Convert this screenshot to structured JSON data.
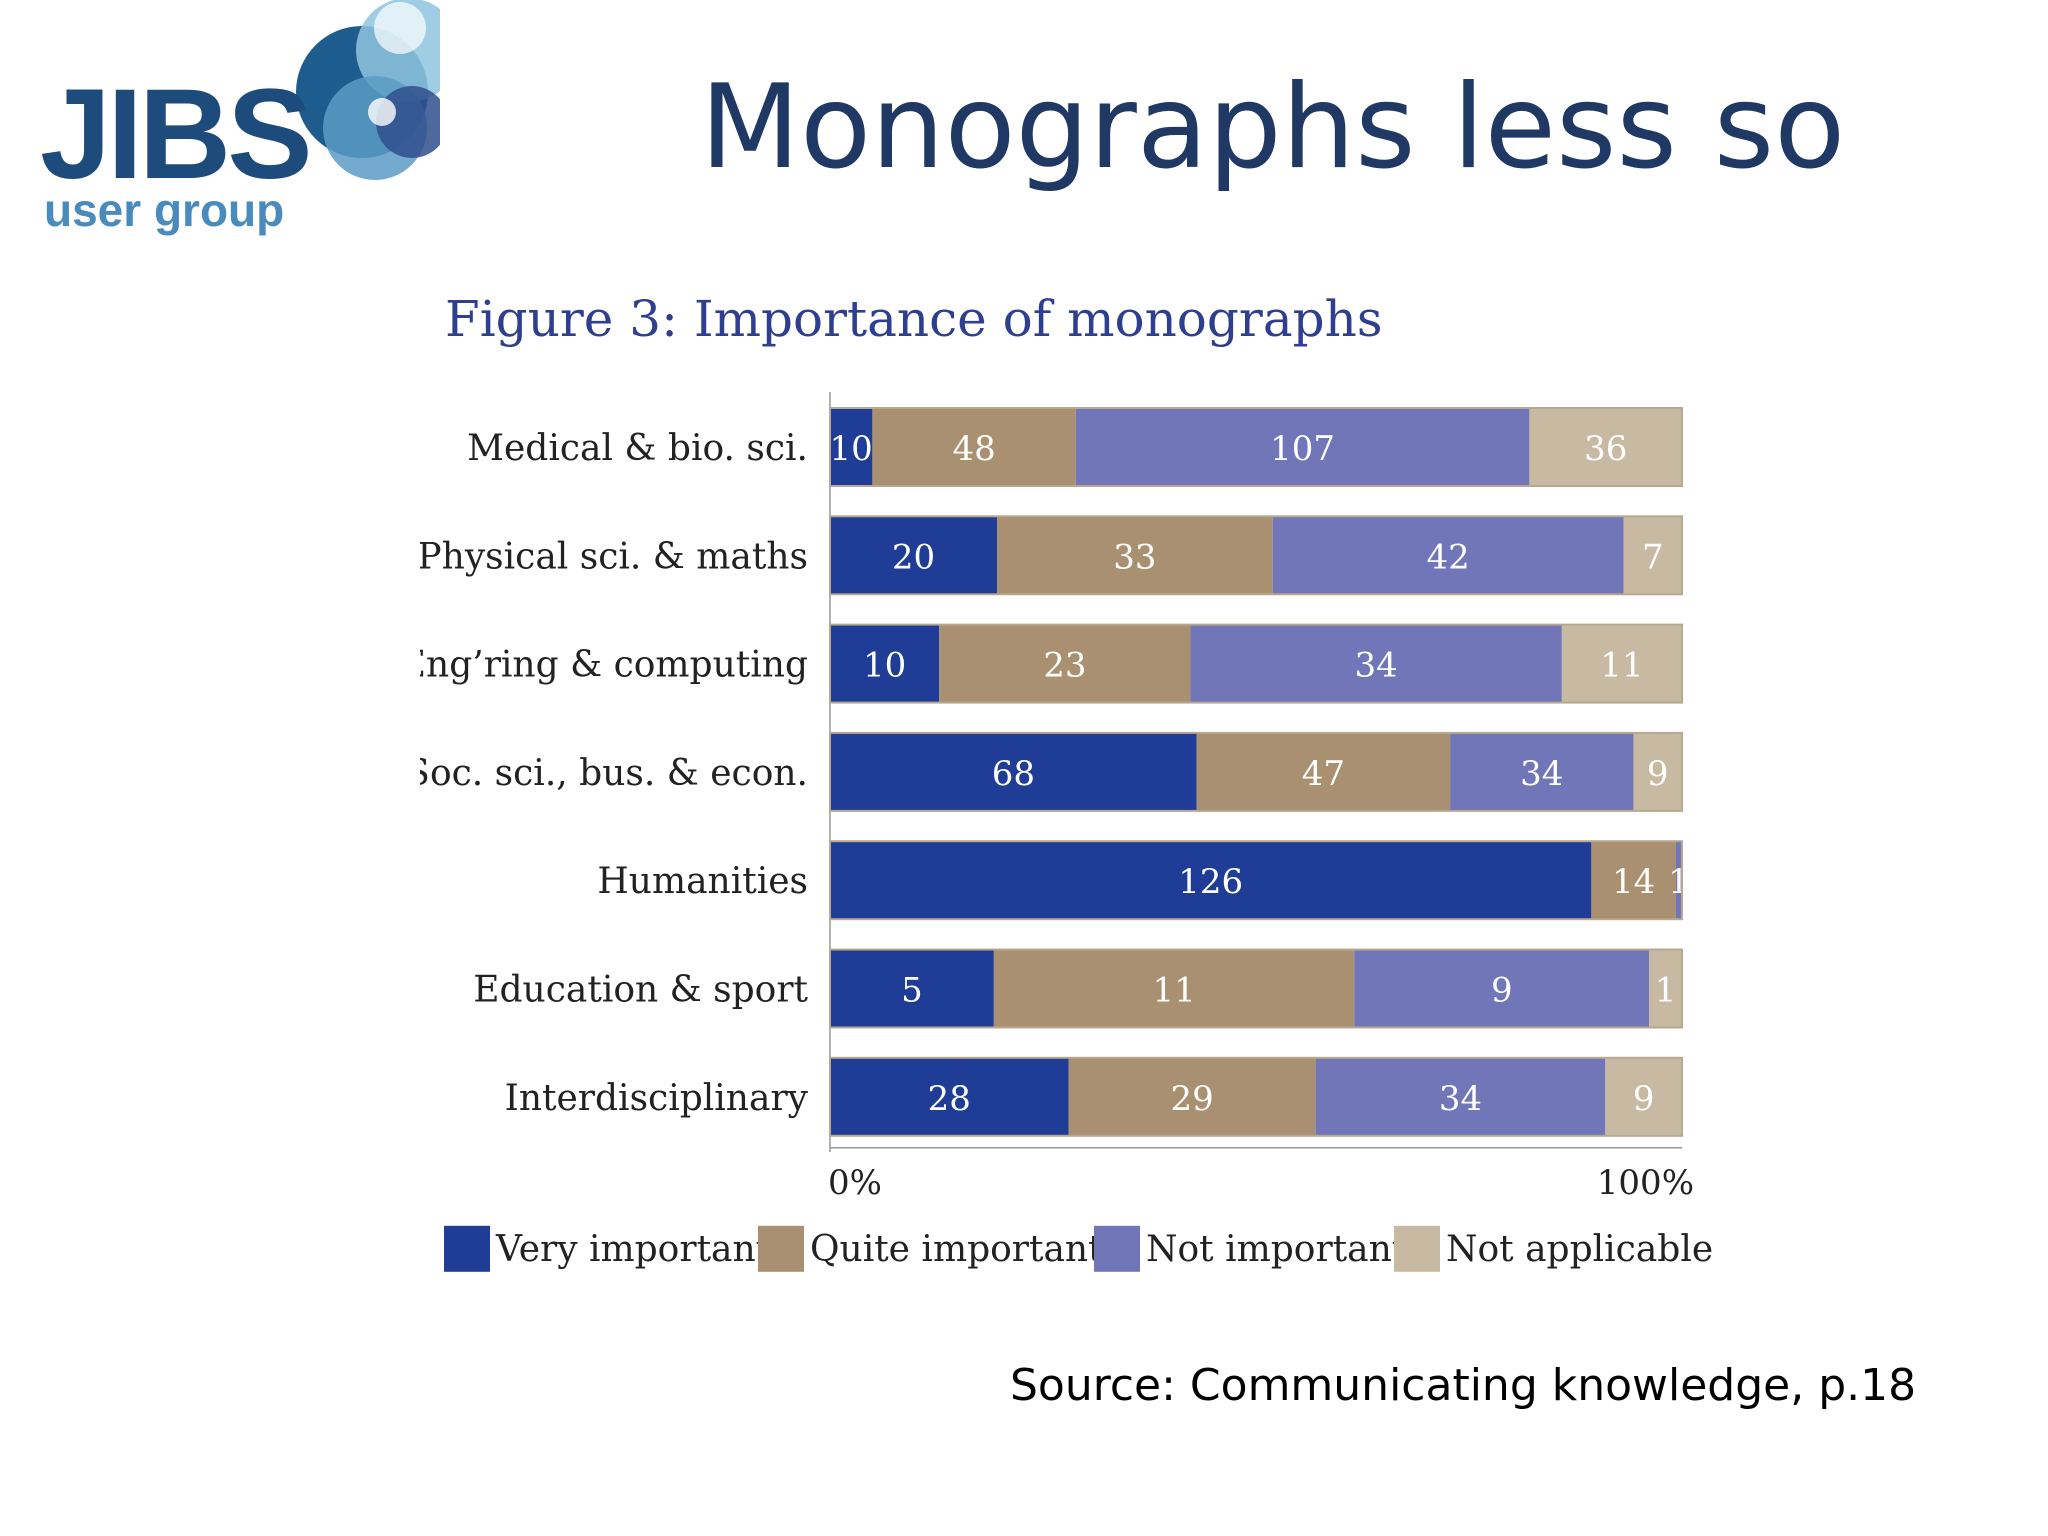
{
  "slide": {
    "title": "Monographs less so",
    "source": "Source: Communicating knowledge, p.18"
  },
  "logo": {
    "brand": "JIBS",
    "tagline": "user group",
    "colors": [
      "#1d5c8c",
      "#5b9bc4",
      "#8ec4de",
      "#2f4f8c"
    ]
  },
  "figure": {
    "title": "Figure 3: Importance of monographs"
  },
  "chart_data": {
    "type": "bar",
    "orientation": "horizontal",
    "stacked": true,
    "normalized": true,
    "title": "Figure 3: Importance of monographs",
    "categories": [
      "Medical & bio. sci.",
      "Physical sci. & maths",
      "Eng’ring & computing",
      "Soc. sci., bus. & econ.",
      "Humanities",
      "Education & sport",
      "Interdisciplinary"
    ],
    "series": [
      {
        "name": "Very important",
        "color": "#1f3d96",
        "values": [
          10,
          20,
          10,
          68,
          126,
          5,
          28
        ]
      },
      {
        "name": "Quite important",
        "color": "#a99070",
        "values": [
          48,
          33,
          23,
          47,
          14,
          11,
          29
        ]
      },
      {
        "name": "Not important",
        "color": "#7076b8",
        "values": [
          107,
          42,
          34,
          34,
          1,
          9,
          34
        ]
      },
      {
        "name": "Not applicable",
        "color": "#c8b9a3",
        "values": [
          36,
          7,
          11,
          9,
          0,
          1,
          9
        ]
      }
    ],
    "x_tick_labels": [
      "0%",
      "100%"
    ],
    "xlim": [
      0,
      100
    ],
    "legend_position": "bottom",
    "grid": false
  }
}
